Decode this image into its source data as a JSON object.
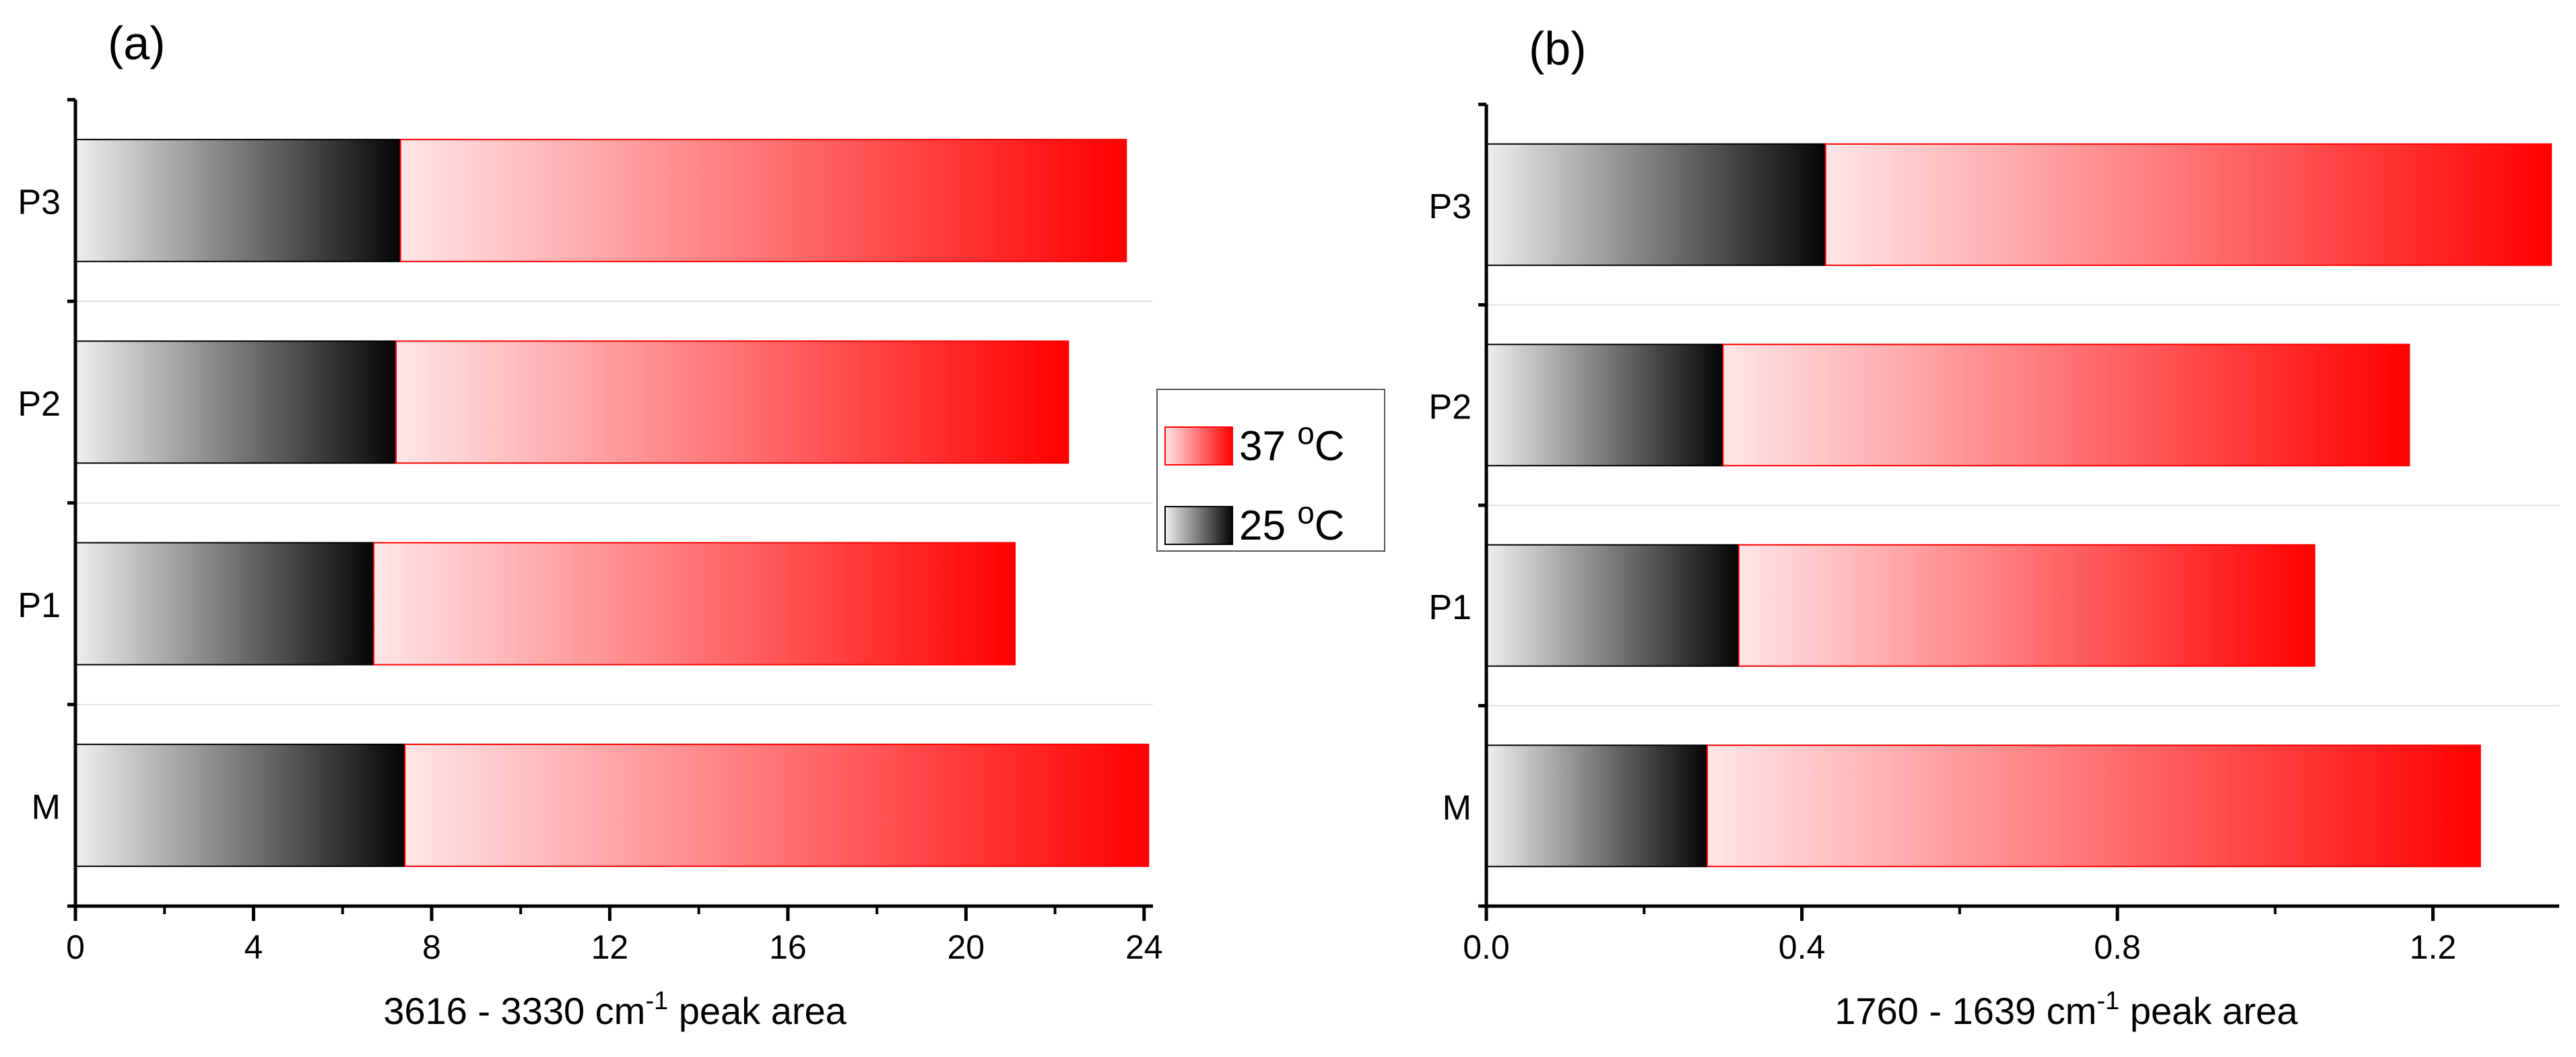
{
  "colors": {
    "warm_start": "#ffe6e8",
    "warm_end": "#ff0000",
    "cool_start": "#efefef",
    "cool_end": "#050505",
    "axis": "#000000",
    "grid": "#d9d9d9"
  },
  "legend": {
    "items": [
      {
        "label": "37 ",
        "sup": "o",
        "unit": "C",
        "swatch": "warm"
      },
      {
        "label": "25 ",
        "sup": "o",
        "unit": "C",
        "swatch": "cool"
      }
    ]
  },
  "chart_data": [
    {
      "panel_label": "(a)",
      "type": "bar",
      "orientation": "horizontal",
      "stacked": true,
      "categories": [
        "M",
        "P1",
        "P2",
        "P3"
      ],
      "series": [
        {
          "name": "25 oC",
          "swatch": "cool",
          "values": [
            7.4,
            6.7,
            7.2,
            7.3
          ]
        },
        {
          "name": "37 oC",
          "swatch": "warm",
          "values": [
            16.7,
            14.4,
            15.1,
            16.3
          ]
        }
      ],
      "totals": [
        24.1,
        21.1,
        22.3,
        23.6
      ],
      "xlim": [
        0,
        24.2
      ],
      "xticks": [
        0,
        4,
        8,
        12,
        16,
        20,
        24
      ],
      "xtick_labels": [
        "0",
        "4",
        "8",
        "12",
        "16",
        "20",
        "24"
      ],
      "xlabel": {
        "pre": "3616 - 3330 cm",
        "sup": "-1",
        "post": " peak area"
      }
    },
    {
      "panel_label": "(b)",
      "type": "bar",
      "orientation": "horizontal",
      "stacked": true,
      "categories": [
        "M",
        "P1",
        "P2",
        "P3"
      ],
      "series": [
        {
          "name": "25 oC",
          "swatch": "cool",
          "values": [
            0.28,
            0.32,
            0.3,
            0.43
          ]
        },
        {
          "name": "37 oC",
          "swatch": "warm",
          "values": [
            0.98,
            0.73,
            0.87,
            0.92
          ]
        }
      ],
      "totals": [
        1.26,
        1.05,
        1.17,
        1.35
      ],
      "xlim": [
        0,
        1.36
      ],
      "xticks": [
        0.0,
        0.4,
        0.8,
        1.2
      ],
      "xtick_labels": [
        "0.0",
        "0.4",
        "0.8",
        "1.2"
      ],
      "xlabel": {
        "pre": "1760 - 1639 cm",
        "sup": "-1",
        "post": " peak area"
      }
    }
  ]
}
